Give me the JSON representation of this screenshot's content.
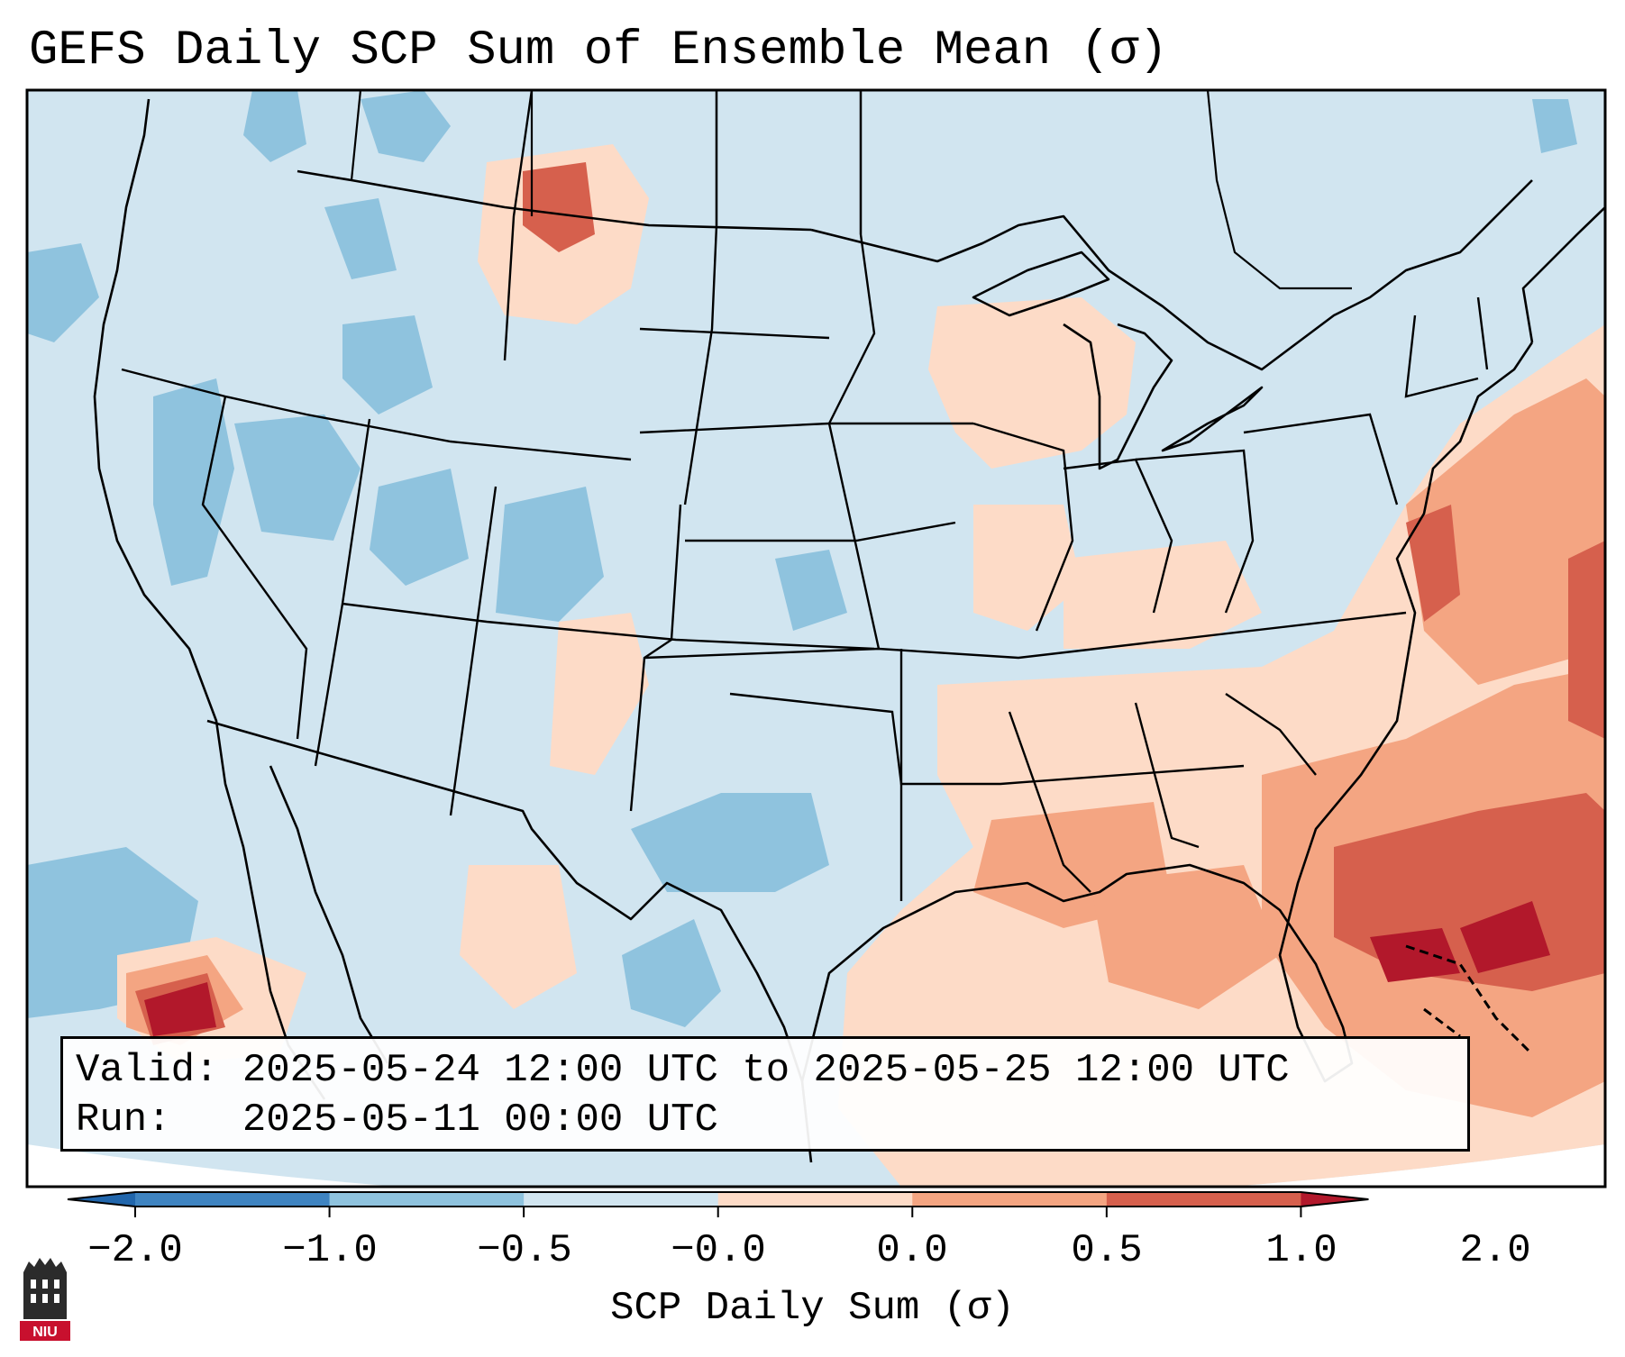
{
  "title": "GEFS Daily SCP Sum of Ensemble Mean (σ)",
  "info": {
    "valid_label": "Valid:",
    "valid_value": "2025-05-24 12:00 UTC to 2025-05-25 12:00 UTC",
    "run_label": "Run:",
    "run_value": "2025-05-11 00:00 UTC"
  },
  "colorbar": {
    "label": "SCP Daily Sum (σ)",
    "ticks": [
      "−2.0",
      "−1.0",
      "−0.5",
      "−0.0",
      "0.0",
      "0.5",
      "1.0",
      "2.0"
    ],
    "colors": [
      "#3f84c1",
      "#8fc3de",
      "#d1e5f0",
      "#fddbc7",
      "#f4a582",
      "#d6604d"
    ],
    "extend_low_color": "#2166ac",
    "extend_high_color": "#b2182b"
  },
  "map": {
    "background_color": "#d1e5f0",
    "positive_regions": [
      "Southeast US",
      "Gulf of Mexico",
      "western Atlantic",
      "Great Lakes",
      "northern Plains"
    ],
    "negative_regions": [
      "Intermountain West",
      "Colorado",
      "west Texas",
      "eastern Pacific"
    ]
  },
  "logo": {
    "text": "NIU"
  }
}
